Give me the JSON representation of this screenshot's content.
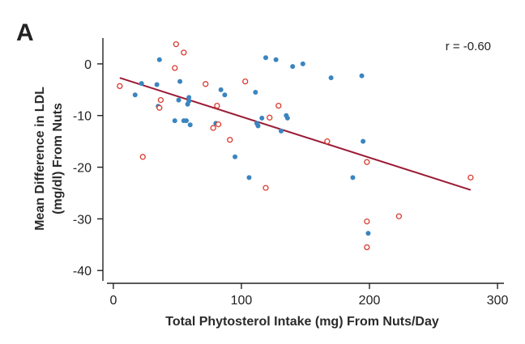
{
  "panel_label": "A",
  "chart_data": {
    "type": "scatter",
    "title": "",
    "xlabel": "Total Phytosterol Intake (mg) From Nuts/Day",
    "ylabel_lines": [
      "Mean Difference in LDL",
      "(mg/dl) From Nuts"
    ],
    "xlim": [
      -5,
      305
    ],
    "ylim": [
      -42,
      5
    ],
    "xticks": [
      0,
      100,
      200,
      300
    ],
    "yticks": [
      0,
      -10,
      -20,
      -30,
      -40
    ],
    "grid": false,
    "annotation": "r = -0.60",
    "colors": {
      "filled": "#3a85c0",
      "open": "#d93a2e",
      "fit": "#9b1b36"
    },
    "fit_line": {
      "x": [
        5,
        279
      ],
      "y": [
        -2.7,
        -24.4
      ]
    },
    "series": [
      {
        "marker": "filled",
        "points": [
          [
            17,
            -6
          ],
          [
            22,
            -3.8
          ],
          [
            34,
            -4
          ],
          [
            35,
            -8.2
          ],
          [
            36,
            0.8
          ],
          [
            48,
            -11
          ],
          [
            51,
            -7
          ],
          [
            52,
            -3.4
          ],
          [
            55,
            -11
          ],
          [
            57,
            -11
          ],
          [
            58,
            -7.8
          ],
          [
            59,
            -6.5
          ],
          [
            59,
            -7.2
          ],
          [
            60,
            -11.8
          ],
          [
            80,
            -11.5
          ],
          [
            84,
            -5
          ],
          [
            87,
            -6
          ],
          [
            95,
            -18
          ],
          [
            106,
            -22
          ],
          [
            111,
            -5.5
          ],
          [
            112,
            -11.5
          ],
          [
            113,
            -12
          ],
          [
            116,
            -10.5
          ],
          [
            119,
            1.2
          ],
          [
            127,
            0.8
          ],
          [
            131,
            -13
          ],
          [
            135,
            -10
          ],
          [
            136,
            -10.5
          ],
          [
            140,
            -0.5
          ],
          [
            148,
            0
          ],
          [
            170,
            -2.7
          ],
          [
            187,
            -22
          ],
          [
            194,
            -2.3
          ],
          [
            195,
            -15
          ],
          [
            199,
            -32.8
          ]
        ]
      },
      {
        "marker": "open",
        "points": [
          [
            5,
            -4.3
          ],
          [
            23,
            -18
          ],
          [
            36,
            -8.5
          ],
          [
            37,
            -7
          ],
          [
            48,
            -0.8
          ],
          [
            49,
            3.8
          ],
          [
            55,
            2.2
          ],
          [
            72,
            -3.9
          ],
          [
            78,
            -12.4
          ],
          [
            81,
            -8.1
          ],
          [
            82,
            -11.7
          ],
          [
            91,
            -14.7
          ],
          [
            103,
            -3.4
          ],
          [
            119,
            -24
          ],
          [
            122,
            -10.4
          ],
          [
            129,
            -8.1
          ],
          [
            167,
            -15
          ],
          [
            198,
            -19
          ],
          [
            198,
            -30.5
          ],
          [
            198,
            -35.5
          ],
          [
            223,
            -29.5
          ],
          [
            279,
            -22
          ]
        ]
      }
    ]
  }
}
